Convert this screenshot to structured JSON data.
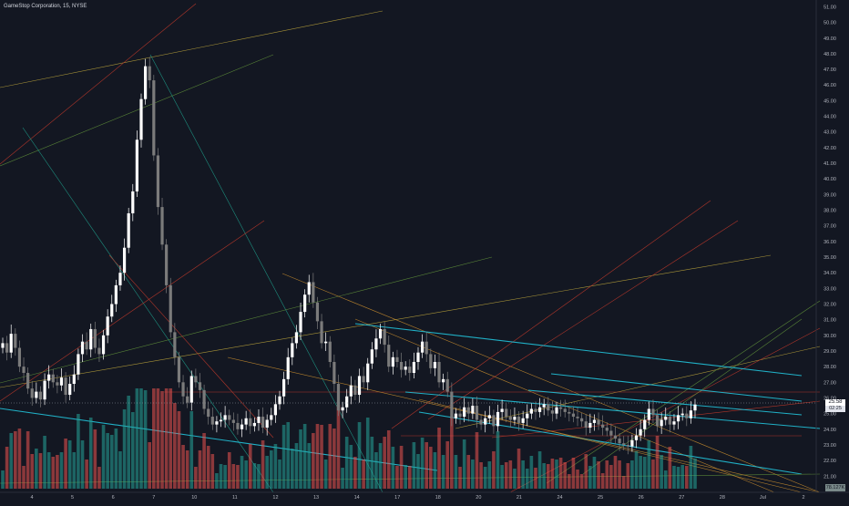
{
  "header": {
    "title": "GameStop Corporation, 15, NYSE"
  },
  "price_tag": {
    "last": "25.58",
    "secondary": "02:25"
  },
  "volume_tag": {
    "last": "78.127K"
  },
  "colors": {
    "background": "#131722",
    "up": "#26a69a",
    "down": "#ef5350",
    "candle_up": "#ffffff",
    "candle_down": "#7b7b7b",
    "trend_cyan": "#22c1d8"
  },
  "chart_data": {
    "type": "candlestick",
    "title": "GameStop Corporation, 15, NYSE",
    "x_tick_labels": [
      "4",
      "5",
      "6",
      "7",
      "10",
      "11",
      "12",
      "13",
      "14",
      "17",
      "18",
      "20",
      "21",
      "24",
      "25",
      "26",
      "27",
      "28",
      "Jul",
      "2"
    ],
    "y_tick_labels": [
      "21.00",
      "22.00",
      "23.00",
      "24.00",
      "25.00",
      "26.00",
      "27.00",
      "28.00",
      "29.00",
      "30.00",
      "31.00",
      "32.00",
      "33.00",
      "34.00",
      "35.00",
      "36.00",
      "37.00",
      "38.00",
      "39.00",
      "40.00",
      "41.00",
      "42.00",
      "43.00",
      "44.00",
      "45.00",
      "46.00",
      "47.00",
      "48.00",
      "49.00",
      "50.00",
      "51.00"
    ],
    "ylim": [
      20.2,
      51.2
    ],
    "series": [
      {
        "closes": [
          29.5,
          28.9,
          30.1,
          29.2,
          28.0,
          27.6,
          26.6,
          26.0,
          26.4,
          25.9,
          27.1,
          27.5,
          27.0,
          26.8,
          27.3,
          26.2,
          26.9,
          27.5,
          28.8,
          29.6,
          29.1,
          30.4,
          29.2,
          28.8,
          30.0,
          31.2,
          32.0,
          33.2,
          34.0,
          35.6,
          37.8,
          39.2,
          42.5,
          45.1,
          47.2,
          46.3,
          41.5,
          38.2,
          35.8,
          33.2,
          30.2,
          28.6,
          27.0,
          26.1,
          25.7,
          27.4,
          27.0,
          26.5,
          25.3,
          24.8,
          24.3,
          24.5,
          24.6,
          24.9,
          24.6,
          24.4,
          24.0,
          24.3,
          24.7,
          24.2,
          24.4,
          24.8,
          24.1,
          24.6,
          24.9,
          25.6,
          26.1,
          27.2,
          28.6,
          29.5,
          30.2,
          31.5,
          32.6,
          33.4,
          32.1,
          30.9,
          29.5,
          29.6,
          28.3,
          26.9,
          25.2,
          25.4,
          26.1,
          26.8,
          26.2,
          27.4,
          27.0,
          28.2,
          29.1,
          29.8,
          30.4,
          29.4,
          28.0,
          28.6,
          28.3,
          27.8,
          28.0,
          27.6,
          28.3,
          28.9,
          29.6,
          28.8,
          27.9,
          28.3,
          27.0,
          27.2,
          26.4,
          24.7,
          25.0,
          24.8,
          25.4,
          25.0,
          25.5,
          24.6,
          24.3,
          24.7,
          24.9,
          24.2,
          25.1,
          25.3,
          24.8,
          24.6,
          24.8,
          24.4,
          24.7,
          25.0,
          25.3,
          25.1,
          25.4,
          25.6,
          25.2,
          25.0,
          25.4,
          25.3,
          25.1,
          25.0,
          24.8,
          24.7,
          24.5,
          24.1,
          24.4,
          24.6,
          24.3,
          24.1,
          23.9,
          23.6,
          23.4,
          23.1,
          23.0,
          22.9,
          23.3,
          23.6,
          24.0,
          24.6,
          25.3,
          24.9,
          24.2,
          24.6,
          24.8,
          24.3,
          24.5,
          24.9,
          25.0,
          24.7,
          25.2,
          25.58
        ]
      }
    ],
    "volume": {
      "name": "Volume",
      "unit": "K"
    },
    "annotations": "multiple trend lines (cyan channel, orange, red, green, olive diagonals)"
  }
}
